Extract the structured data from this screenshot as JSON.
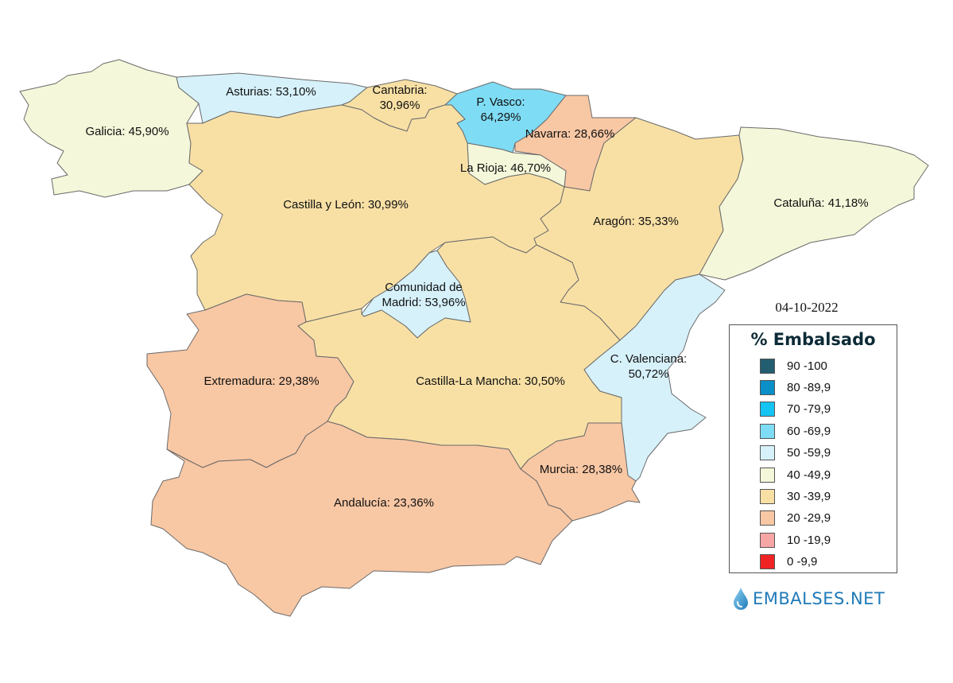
{
  "date": "04-10-2022",
  "legend": {
    "title": "% Embalsado",
    "items": [
      {
        "label": "90 -100",
        "color": "#235d70"
      },
      {
        "label": "80 -89,9",
        "color": "#0b8fc9"
      },
      {
        "label": "70 -79,9",
        "color": "#15c4f2"
      },
      {
        "label": "60 -69,9",
        "color": "#7fdcf5"
      },
      {
        "label": "50 -59,9",
        "color": "#d6f1fa"
      },
      {
        "label": "40 -49,9",
        "color": "#f4f7d9"
      },
      {
        "label": "30 -39,9",
        "color": "#f8e0a5"
      },
      {
        "label": "20 -29,9",
        "color": "#f8c7a4"
      },
      {
        "label": "10 -19,9",
        "color": "#f7a6a6"
      },
      {
        "label": "0 -9,9",
        "color": "#ef2323"
      }
    ]
  },
  "regions": {
    "galicia": {
      "line1": "Galicia: 45,90%",
      "value": 45.9,
      "color": "#f4f7d9"
    },
    "asturias": {
      "line1": "Asturias: 53,10%",
      "value": 53.1,
      "color": "#d6f1fa"
    },
    "cantabria": {
      "line1": "Cantabria:",
      "line2": "30,96%",
      "value": 30.96,
      "color": "#f8e0a5"
    },
    "pvasco": {
      "line1": "P. Vasco:",
      "line2": "64,29%",
      "value": 64.29,
      "color": "#7fdcf5"
    },
    "navarra": {
      "line1": "Navarra: 28,66%",
      "value": 28.66,
      "color": "#f8c7a4"
    },
    "larioja": {
      "line1": "La Rioja: 46,70%",
      "value": 46.7,
      "color": "#f4f7d9"
    },
    "castillayleon": {
      "line1": "Castilla y León: 30,99%",
      "value": 30.99,
      "color": "#f8e0a5"
    },
    "aragon": {
      "line1": "Aragón: 35,33%",
      "value": 35.33,
      "color": "#f8e0a5"
    },
    "cataluna": {
      "line1": "Cataluña: 41,18%",
      "value": 41.18,
      "color": "#f4f7d9"
    },
    "madrid": {
      "line1": "Comunidad de",
      "line2": "Madrid: 53,96%",
      "value": 53.96,
      "color": "#d6f1fa"
    },
    "extremadura": {
      "line1": "Extremadura: 29,38%",
      "value": 29.38,
      "color": "#f8c7a4"
    },
    "castillalamancha": {
      "line1": "Castilla-La Mancha: 30,50%",
      "value": 30.5,
      "color": "#f8e0a5"
    },
    "valenciana": {
      "line1": "C. Valenciana:",
      "line2": "50,72%",
      "value": 50.72,
      "color": "#d6f1fa"
    },
    "murcia": {
      "line1": "Murcia: 28,38%",
      "value": 28.38,
      "color": "#f8c7a4"
    },
    "andalucia": {
      "line1": "Andalucía: 23,36%",
      "value": 23.36,
      "color": "#f8c7a4"
    }
  },
  "brand": {
    "text": "EMBALSES.NET",
    "icon": "water-drop-icon",
    "color": "#1f7ab8"
  }
}
